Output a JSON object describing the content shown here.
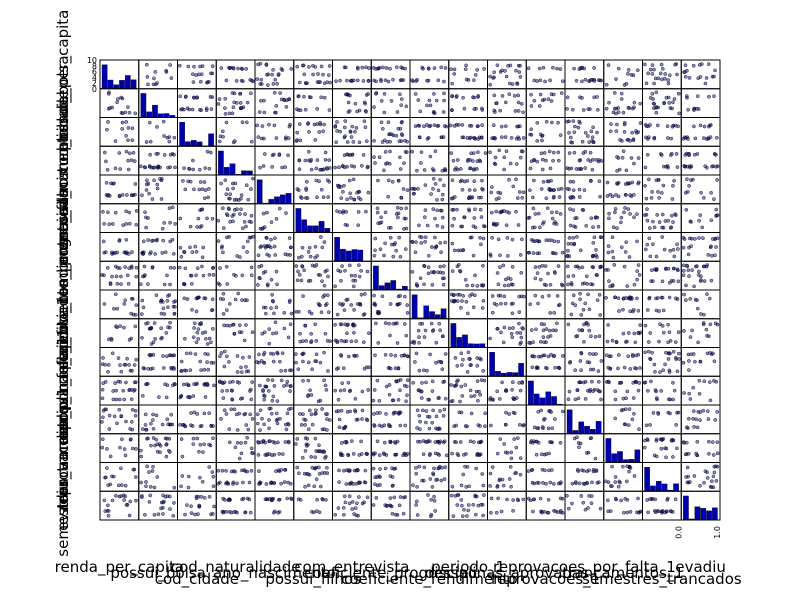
{
  "chart_data": {
    "type": "scatter",
    "subtype": "scatter_matrix",
    "grid": false,
    "legend": "none",
    "colors": {
      "points": "#1a1a66",
      "point_edge": "#000033",
      "hist": "#0000aa",
      "frame": "#000000"
    },
    "variables": [
      "renda_per_capita",
      "possui_bolsa",
      "cod_cidade",
      "cod_naturalidade",
      "ano_nascimento",
      "possui_filhos",
      "com_entrevista",
      "coeficiente_progressao",
      "coeficiente_rendimento",
      "periodo_1",
      "disciplinas_aprovadas",
      "reprovacoes_1",
      "reprovacoes_por_falta_1",
      "trancamentos_1",
      "semestres_trancados",
      "evadiu"
    ],
    "diagonal": "hist",
    "point_alpha": 0.5,
    "sample_ticks": {
      "renda_per_capita": [
        "0",
        "2",
        "4",
        "6",
        "8",
        "10"
      ],
      "evadiu": [
        "0.0",
        "1.0"
      ]
    }
  }
}
